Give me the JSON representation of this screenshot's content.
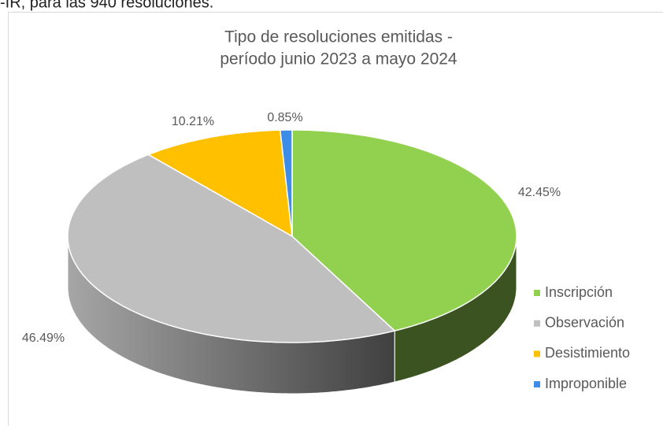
{
  "caption": "-IR, para las 940 resoluciones.",
  "chart_data": {
    "type": "pie3d",
    "title": [
      "Tipo de resoluciones emitidas -",
      "período junio 2023 a mayo 2024"
    ],
    "categories": [
      "Inscripción",
      "Observación",
      "Desistimiento",
      "Improponible"
    ],
    "values": [
      42.45,
      46.49,
      10.21,
      0.85
    ],
    "value_labels": [
      "42.45%",
      "46.49%",
      "10.21%",
      "0.85%"
    ],
    "colors": [
      "#92d050",
      "#bfbfbf",
      "#ffc000",
      "#3d8ce8"
    ],
    "legend": "right"
  }
}
